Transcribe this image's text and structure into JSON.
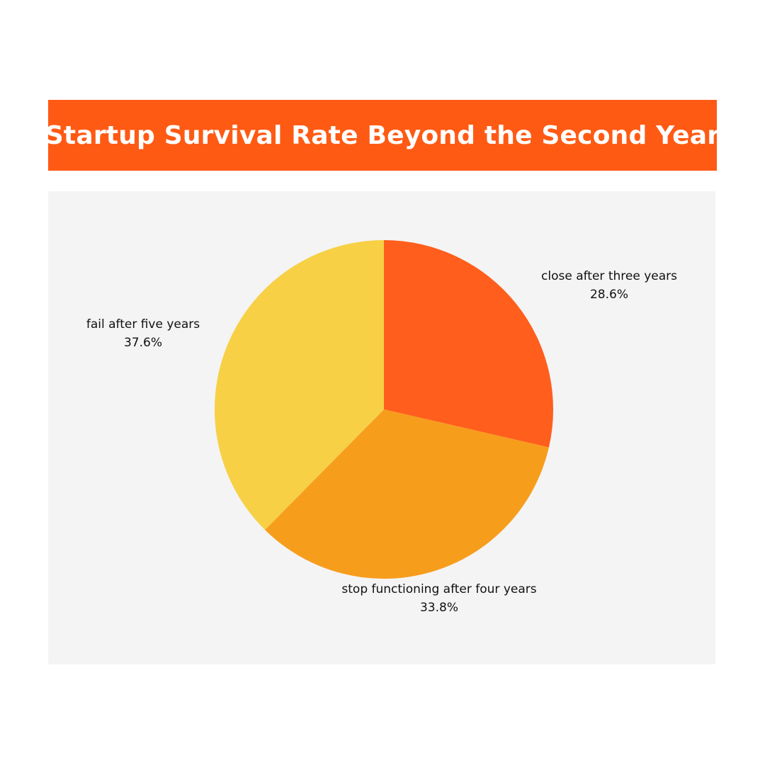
{
  "title": "Startup Survival Rate Beyond the Second Year",
  "colors": {
    "title_background": "#ff5a14",
    "title_text": "#ffffff",
    "panel_background": "#f4f4f4"
  },
  "chart_data": {
    "type": "pie",
    "title": "Startup Survival Rate Beyond the Second Year",
    "slices": [
      {
        "label": "close after three years",
        "value": 28.6,
        "value_label": "28.6%",
        "color": "#ff5e1c"
      },
      {
        "label": "stop functioning after four years",
        "value": 33.8,
        "value_label": "33.8%",
        "color": "#f79d1c"
      },
      {
        "label": "fail after five years",
        "value": 37.6,
        "value_label": "37.6%",
        "color": "#f7d046"
      }
    ],
    "start_angle_deg": 0,
    "direction": "clockwise",
    "legend": "none"
  }
}
